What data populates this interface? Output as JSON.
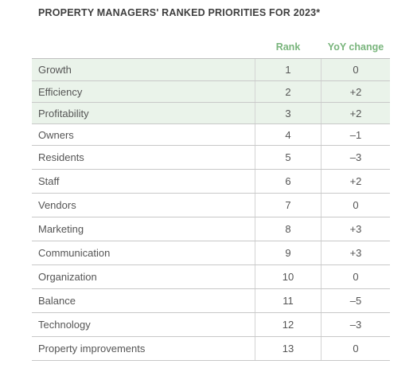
{
  "chart_data": {
    "type": "table",
    "title": "PROPERTY MANAGERS' RANKED PRIORITIES FOR 2023*",
    "columns": [
      "",
      "Rank",
      "YoY change"
    ],
    "highlight_color": "#eaf3ea",
    "header_color": "#79b57c",
    "rows": [
      {
        "category": "Growth",
        "rank": "1",
        "yoy": "0",
        "highlight": true
      },
      {
        "category": "Efficiency",
        "rank": "2",
        "yoy": "+2",
        "highlight": true
      },
      {
        "category": "Profitability",
        "rank": "3",
        "yoy": "+2",
        "highlight": true
      },
      {
        "category": "Owners",
        "rank": "4",
        "yoy": "–1",
        "highlight": false
      },
      {
        "category": "Residents",
        "rank": "5",
        "yoy": "–3",
        "highlight": false
      },
      {
        "category": "Staff",
        "rank": "6",
        "yoy": "+2",
        "highlight": false
      },
      {
        "category": "Vendors",
        "rank": "7",
        "yoy": "0",
        "highlight": false
      },
      {
        "category": "Marketing",
        "rank": "8",
        "yoy": "+3",
        "highlight": false
      },
      {
        "category": "Communication",
        "rank": "9",
        "yoy": "+3",
        "highlight": false
      },
      {
        "category": "Organization",
        "rank": "10",
        "yoy": "0",
        "highlight": false
      },
      {
        "category": "Balance",
        "rank": "11",
        "yoy": "–5",
        "highlight": false
      },
      {
        "category": "Technology",
        "rank": "12",
        "yoy": "–3",
        "highlight": false
      },
      {
        "category": "Property improvements",
        "rank": "13",
        "yoy": "0",
        "highlight": false
      }
    ]
  }
}
